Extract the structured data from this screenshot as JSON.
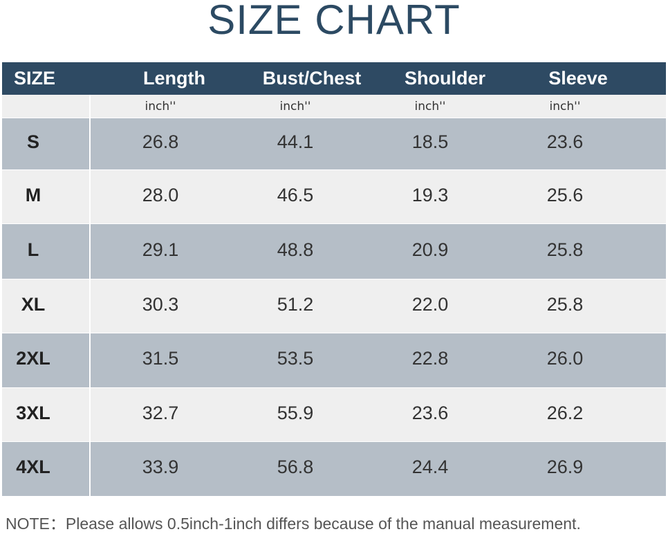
{
  "header": {
    "title": "SIZE CHART"
  },
  "table": {
    "columns": [
      "SIZE",
      "Length",
      "Bust/Chest",
      "Shoulder",
      "Sleeve"
    ],
    "units": [
      "inch''",
      "inch''",
      "inch''",
      "inch''"
    ],
    "rows": [
      [
        "S",
        "26.8",
        "44.1",
        "18.5",
        "23.6"
      ],
      [
        "M",
        "28.0",
        "46.5",
        "19.3",
        "25.6"
      ],
      [
        "L",
        "29.1",
        "48.8",
        "20.9",
        "25.8"
      ],
      [
        "XL",
        "30.3",
        "51.2",
        "22.0",
        "25.8"
      ],
      [
        "2XL",
        "31.5",
        "53.5",
        "22.8",
        "26.0"
      ],
      [
        "3XL",
        "32.7",
        "55.9",
        "23.6",
        "26.2"
      ],
      [
        "4XL",
        "33.9",
        "56.8",
        "24.4",
        "26.9"
      ]
    ]
  },
  "note": "NOTE：Please allows 0.5inch-1inch differs because of the manual measurement."
}
